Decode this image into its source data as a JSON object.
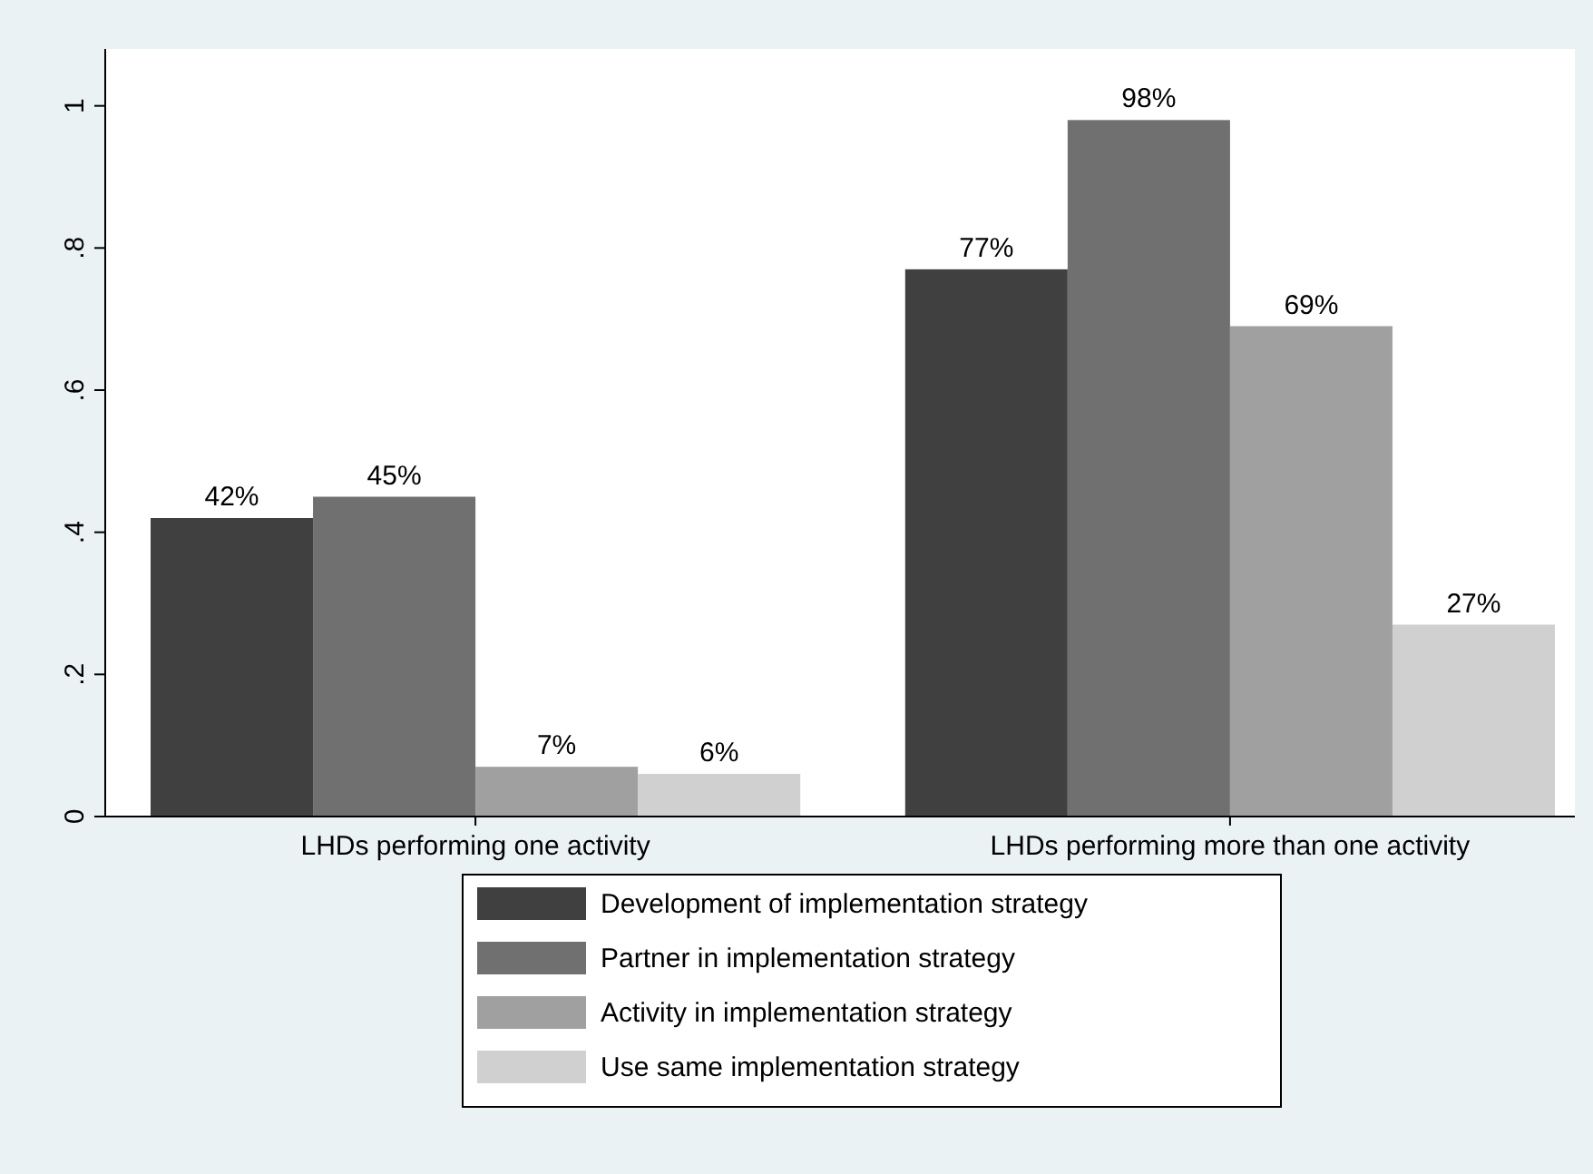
{
  "chart_data": {
    "type": "bar",
    "categories": [
      "LHDs performing one activity",
      "LHDs performing more than one activity"
    ],
    "series": [
      {
        "name": "Development of implementation strategy",
        "color": "#404040",
        "values": [
          0.42,
          0.77
        ],
        "value_labels": [
          "42%",
          "77%"
        ]
      },
      {
        "name": "Partner in implementation strategy",
        "color": "#707070",
        "values": [
          0.45,
          0.98
        ],
        "value_labels": [
          "45%",
          "98%"
        ]
      },
      {
        "name": "Activity in implementation strategy",
        "color": "#a0a0a0",
        "values": [
          0.07,
          0.69
        ],
        "value_labels": [
          "7%",
          "69%"
        ]
      },
      {
        "name": "Use same implementation strategy",
        "color": "#d0d0d0",
        "values": [
          0.06,
          0.27
        ],
        "value_labels": [
          "6%",
          "27%"
        ]
      }
    ],
    "ylim": [
      0,
      1.08
    ],
    "yticks": [
      {
        "value": 0,
        "label": "0"
      },
      {
        "value": 0.2,
        "label": ".2"
      },
      {
        "value": 0.4,
        "label": ".4"
      },
      {
        "value": 0.6,
        "label": ".6"
      },
      {
        "value": 0.8,
        "label": ".8"
      },
      {
        "value": 1,
        "label": "1"
      }
    ],
    "legend": "bottom"
  }
}
